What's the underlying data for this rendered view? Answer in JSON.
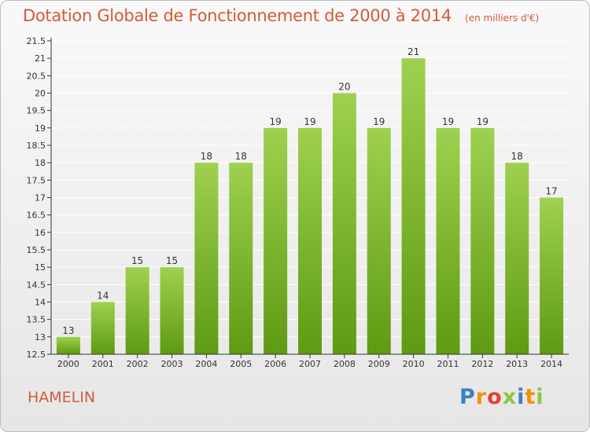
{
  "header": {
    "title": "Dotation Globale de Fonctionnement de 2000 à 2014",
    "subtitle": "(en milliers d'€)"
  },
  "place_name": "HAMELIN",
  "logo": {
    "text": "Proxiti",
    "colors": [
      "#3a7fc1",
      "#f29100",
      "#e8412c",
      "#8cc63f",
      "#3a7fc1",
      "#f29100",
      "#8cc63f"
    ]
  },
  "colors": {
    "title": "#d45a38",
    "bar_top": "#9ed14f",
    "bar_bottom": "#5e9a12",
    "grid": "#ffffff",
    "axis": "#333333"
  },
  "chart_data": {
    "type": "bar",
    "categories": [
      "2000",
      "2001",
      "2002",
      "2003",
      "2004",
      "2005",
      "2006",
      "2007",
      "2008",
      "2009",
      "2010",
      "2011",
      "2012",
      "2013",
      "2014"
    ],
    "values": [
      13,
      14,
      15,
      15,
      18,
      18,
      19,
      19,
      20,
      19,
      21,
      19,
      19,
      18,
      17
    ],
    "title": "Dotation Globale de Fonctionnement de 2000 à 2014",
    "ylim": [
      12.5,
      21.5
    ],
    "yticks": [
      "12.5",
      "13",
      "13.5",
      "14",
      "14.5",
      "15",
      "15.5",
      "16",
      "16.5",
      "17",
      "17.5",
      "18",
      "18.5",
      "19",
      "19.5",
      "20",
      "20.5",
      "21",
      "21.5"
    ],
    "grid": true
  }
}
